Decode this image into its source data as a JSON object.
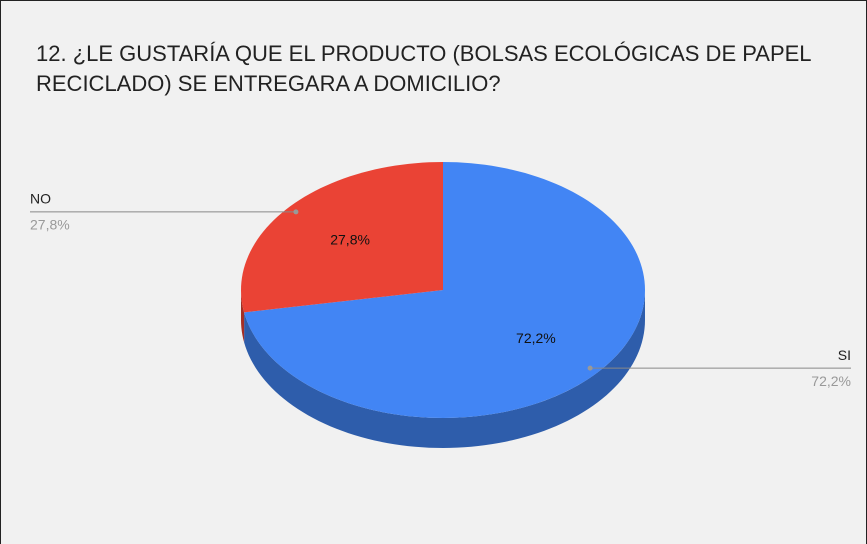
{
  "chart_data": {
    "type": "pie",
    "title": "12. ¿LE GUSTARÍA QUE EL PRODUCTO (BOLSAS ECOLÓGICAS DE PAPEL RECICLADO) SE ENTREGARA A DOMICILIO?",
    "categories": [
      "SI",
      "NO"
    ],
    "values": [
      72.2,
      27.8
    ],
    "value_labels": [
      "72,2%",
      "27,8%"
    ],
    "colors": [
      "#4285f4",
      "#ea4335"
    ],
    "three_d": true
  }
}
